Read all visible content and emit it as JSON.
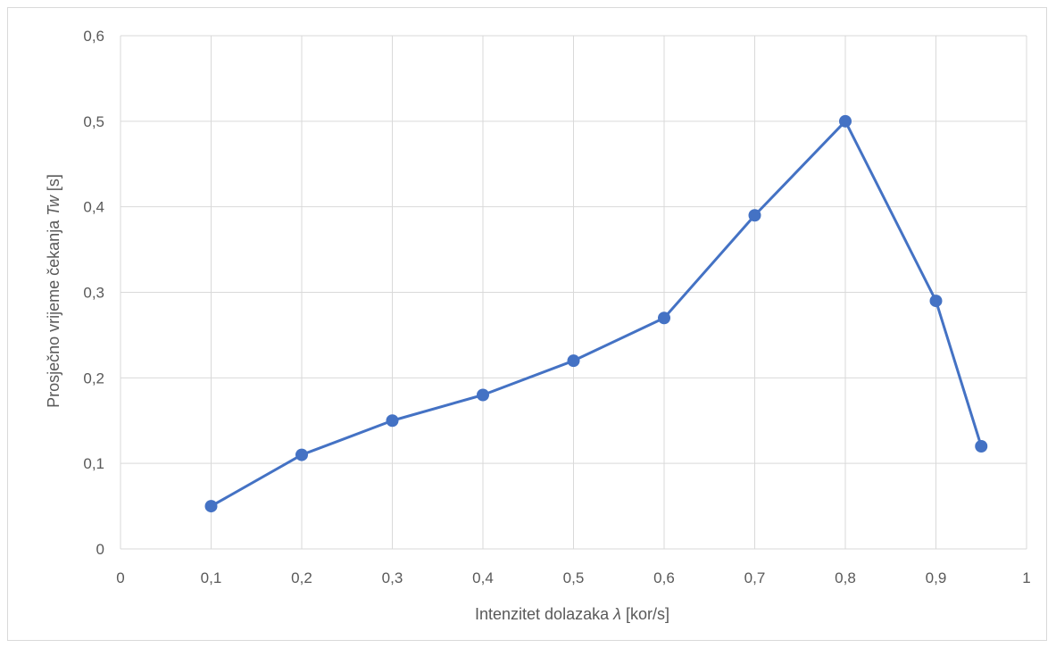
{
  "chart_data": {
    "type": "scatter",
    "title": "",
    "xlabel_parts": [
      "Intenzitet dolazaka ",
      "λ",
      " [kor/s]"
    ],
    "ylabel_parts": [
      "Prosječno vrijeme čekanja ",
      "Tw",
      " [s]"
    ],
    "xlim": [
      0,
      1
    ],
    "ylim": [
      0,
      0.6
    ],
    "x_ticks": [
      0,
      0.1,
      0.2,
      0.3,
      0.4,
      0.5,
      0.6,
      0.7,
      0.8,
      0.9,
      1
    ],
    "x_tick_labels": [
      "0",
      "0,1",
      "0,2",
      "0,3",
      "0,4",
      "0,5",
      "0,6",
      "0,7",
      "0,8",
      "0,9",
      "1"
    ],
    "y_ticks": [
      0,
      0.1,
      0.2,
      0.3,
      0.4,
      0.5,
      0.6
    ],
    "y_tick_labels": [
      "0",
      "0,1",
      "0,2",
      "0,3",
      "0,4",
      "0,5",
      "0,6"
    ],
    "grid": true,
    "legend": "none",
    "series": [
      {
        "color": "#4472c4",
        "marker": "circle",
        "line": "straight",
        "x": [
          0.1,
          0.2,
          0.3,
          0.4,
          0.5,
          0.6,
          0.7,
          0.8,
          0.9,
          0.95
        ],
        "y": [
          0.05,
          0.11,
          0.15,
          0.18,
          0.22,
          0.27,
          0.39,
          0.5,
          0.29,
          0.12
        ]
      }
    ]
  }
}
